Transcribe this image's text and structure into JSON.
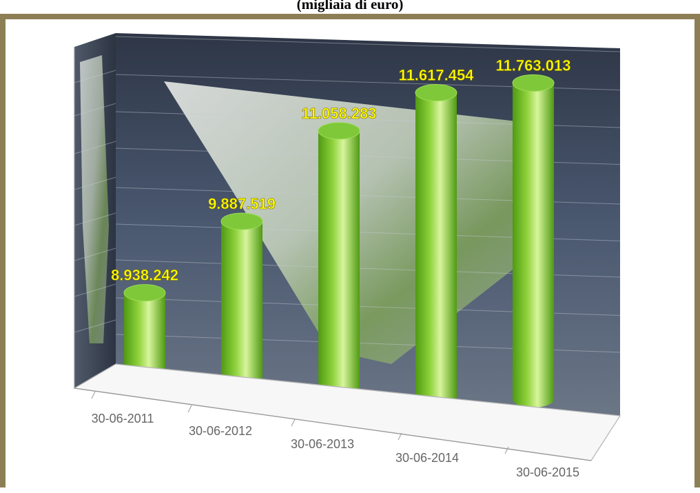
{
  "header": {
    "title": "(migliaia di euro)"
  },
  "chart_data": {
    "type": "bar",
    "style": "3d-cylinder",
    "title": "(migliaia di euro)",
    "categories": [
      "30-06-2011",
      "30-06-2012",
      "30-06-2013",
      "30-06-2014",
      "30-06-2015"
    ],
    "series": [
      {
        "values": [
          8938242,
          9887519,
          11058283,
          11617454,
          11763013
        ]
      }
    ],
    "data_labels": [
      "8.938.242",
      "9.887.519",
      "11.058.283",
      "11.617.454",
      "11.763.013"
    ],
    "ylim": [
      7500000,
      12500000
    ],
    "grid": true,
    "legend": "none",
    "colors": {
      "bar": "#8fd23c",
      "bar_dark": "#4f9a12",
      "bar_light": "#d8f59c",
      "label": "#ffff00",
      "frame": "#8d7f55",
      "wall": "#3d4b63",
      "axis_text": "#666666"
    }
  }
}
